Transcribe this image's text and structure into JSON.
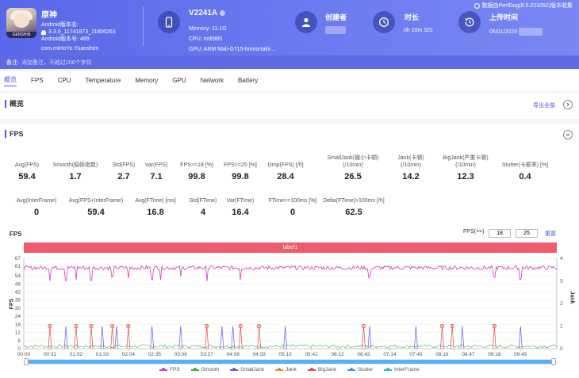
{
  "header": {
    "app_name": "原神",
    "android_version_name": "Android版本名:",
    "version_name": "3.3.0_11741873_11806263",
    "android_version_code": "Android版本号: 489",
    "package": "com.miHoYo.Yuanshen",
    "device_name": "V2241A",
    "memory": "Memory: 11.1G",
    "cpu": "CPU: mt6985",
    "gpu": "GPU: ARM Mali-G715-Immortalis ...",
    "creator_label": "创建者",
    "duration_label": "时长",
    "duration_value": "0h 10m 32s",
    "upload_label": "上传时间",
    "upload_value": "06/01/2023",
    "export_text": "数据由PerfDog(8.0.221052)版本收集",
    "accent_color": "#5a67e8"
  },
  "note": {
    "label": "备注:",
    "hint": "添加备注，不超过200个字符"
  },
  "tabs": [
    "概览",
    "FPS",
    "CPU",
    "Temperature",
    "Memory",
    "GPU",
    "Network",
    "Battery"
  ],
  "overview": {
    "title": "概览",
    "export_all": "导出全部"
  },
  "fps_section": {
    "title": "FPS",
    "metrics_row1": [
      {
        "label": "Avg(FPS)",
        "value": "59.4"
      },
      {
        "label": "Smooth(稳帧指数)",
        "value": "1.7"
      },
      {
        "label": "Std(FPS)",
        "value": "2.7"
      },
      {
        "label": "Var(FPS)",
        "value": "7.1"
      },
      {
        "label": "FPS>=18 [%]",
        "value": "99.8"
      },
      {
        "label": "FPS>=25 [%]",
        "value": "99.8"
      },
      {
        "label": "Drop(FPS) [/h]",
        "value": "28.4"
      },
      {
        "label": "SmallJank(微小卡顿)",
        "label2": "(/10min)",
        "value": "26.5"
      },
      {
        "label": "Jank(卡顿)",
        "label2": "(/10min)",
        "value": "14.2"
      },
      {
        "label": "BigJank(严重卡顿)",
        "label2": "(/10min)",
        "value": "12.3"
      },
      {
        "label": "Stutter(卡顿率) [%]",
        "value": "0.4"
      }
    ],
    "metrics_row2": [
      {
        "label": "Avg(InterFrame)",
        "value": "0"
      },
      {
        "label": "Avg(FPS+InterFrame)",
        "value": "59.4"
      },
      {
        "label": "Avg(FTime) [ms]",
        "value": "16.8"
      },
      {
        "label": "Std(FTime)",
        "value": "4"
      },
      {
        "label": "Var(FTime)",
        "value": "16.4"
      },
      {
        "label": "FTime>=100ms [%]",
        "value": "0"
      },
      {
        "label": "Delta(FTime)>100ms [/h]",
        "value": "62.5"
      }
    ]
  },
  "chart_header": {
    "title": "FPS",
    "threshold_label": "FPS(>=)",
    "threshold_1": "18",
    "threshold_2": "25",
    "reset": "重置",
    "band_label": "label1"
  },
  "chart_data": {
    "type": "line",
    "title": "FPS",
    "ylabel": "FPS",
    "y2label": "Jank",
    "y_ticks": [
      "0",
      "6",
      "12",
      "18",
      "24",
      "30",
      "36",
      "42",
      "48",
      "54",
      "61",
      "67"
    ],
    "y2_ticks": [
      "0",
      "1",
      "2",
      "3",
      "4"
    ],
    "ylim": [
      0,
      67
    ],
    "y2lim": [
      0,
      4
    ],
    "x_ticks": [
      "00:00",
      "00:31",
      "01:02",
      "01:33",
      "02:04",
      "02:35",
      "03:06",
      "03:37",
      "04:08",
      "04:39",
      "05:10",
      "05:41",
      "06:12",
      "06:43",
      "07:14",
      "07:45",
      "08:16",
      "08:47",
      "09:18",
      "09:49"
    ],
    "fps_baseline": 60,
    "fps_dips_at": [
      "00:31",
      "00:50",
      "01:02",
      "01:20",
      "01:45",
      "02:04",
      "02:32",
      "02:42",
      "03:06",
      "03:37",
      "04:17",
      "06:50",
      "09:18",
      "09:49"
    ],
    "bigjank_at": [
      "00:31",
      "01:02",
      "01:20",
      "01:45",
      "02:04",
      "03:37",
      "04:17",
      "04:39",
      "06:43",
      "08:16",
      "08:28",
      "09:18"
    ],
    "jank_at": [
      "00:50",
      "01:33",
      "01:50",
      "02:32",
      "03:06",
      "03:55",
      "04:08",
      "05:10",
      "06:50",
      "07:45",
      "08:40",
      "09:49"
    ],
    "series": [
      {
        "name": "FPS",
        "color": "#c93fc0"
      },
      {
        "name": "Smooth",
        "color": "#3fae49"
      },
      {
        "name": "SmallJank",
        "color": "#6a5bd6"
      },
      {
        "name": "Jank",
        "color": "#f0883a"
      },
      {
        "name": "BigJank",
        "color": "#e34b4b"
      },
      {
        "name": "Stutter",
        "color": "#4b8fe3"
      },
      {
        "name": "InterFrame",
        "color": "#36b8c8"
      }
    ]
  }
}
